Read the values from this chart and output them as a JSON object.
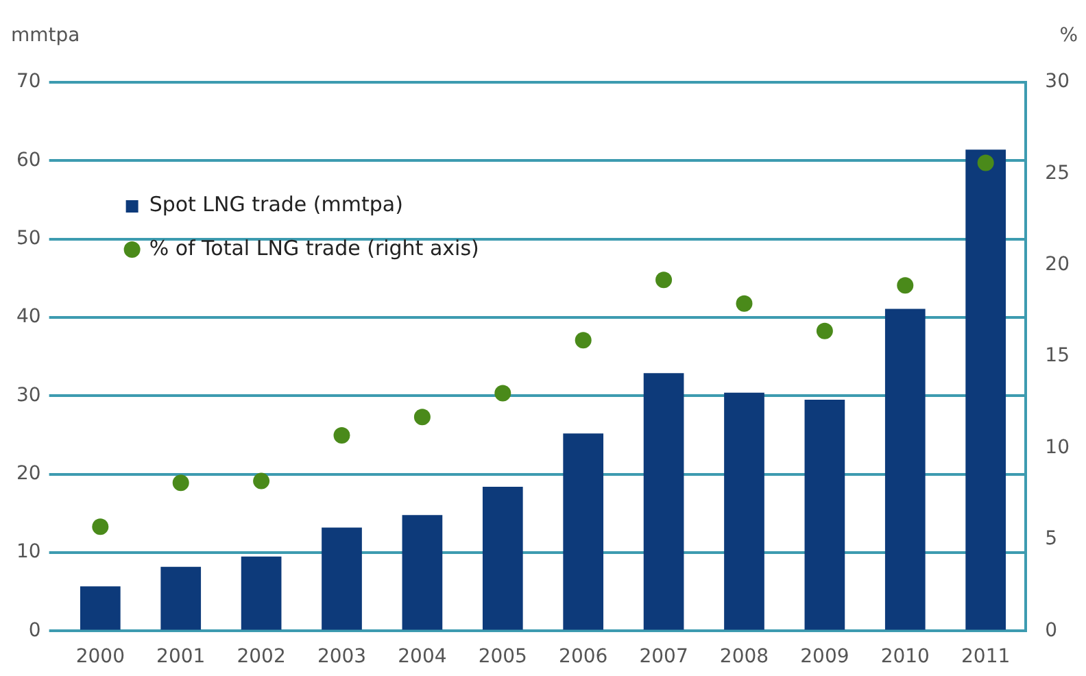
{
  "chart_data": {
    "type": "bar",
    "ylabel": "mmtpa",
    "y2label": "%",
    "categories": [
      "2000",
      "2001",
      "2002",
      "2003",
      "2004",
      "2005",
      "2006",
      "2007",
      "2008",
      "2009",
      "2010",
      "2011"
    ],
    "series": [
      {
        "name": "Spot LNG trade (mmtpa)",
        "color": "#0d3a7a",
        "values": [
          5.7,
          8.2,
          9.5,
          13.2,
          14.8,
          18.4,
          25.2,
          32.9,
          30.4,
          29.5,
          41.1,
          61.4
        ]
      },
      {
        "name": "% of Total LNG trade (right axis)",
        "type": "scatter",
        "axis": "y2",
        "color": "#4a8a1a",
        "values": [
          5.7,
          8.1,
          8.2,
          10.7,
          11.7,
          13.0,
          15.9,
          19.2,
          17.9,
          16.4,
          18.9,
          25.6
        ]
      }
    ],
    "ylim": [
      0,
      70
    ],
    "yticks": [
      0,
      10,
      20,
      30,
      40,
      50,
      60,
      70
    ],
    "y2lim": [
      0,
      30
    ],
    "y2ticks": [
      0,
      5,
      10,
      15,
      20,
      25,
      30
    ],
    "grid": "y",
    "legend": "top left",
    "marker": "circle"
  }
}
